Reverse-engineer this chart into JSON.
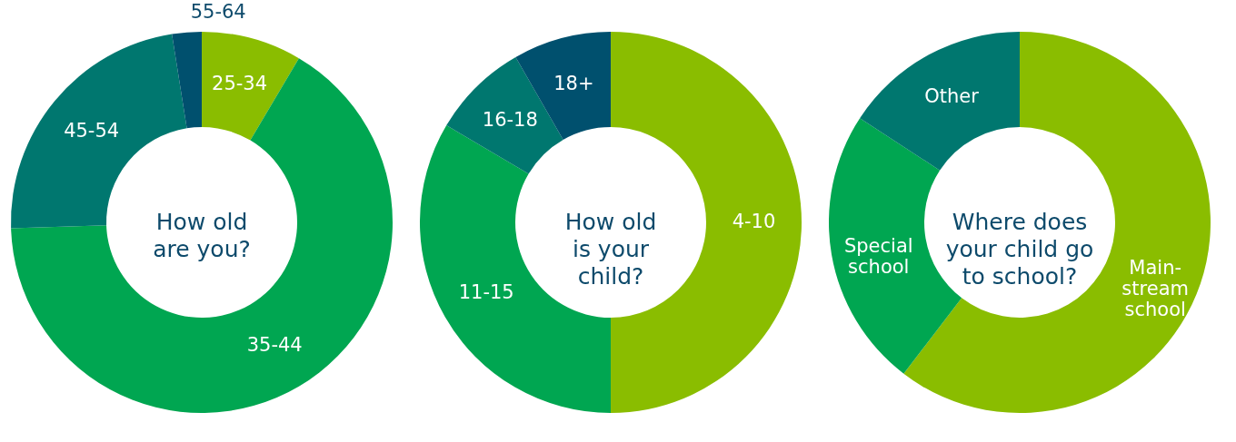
{
  "chart_data": [
    {
      "type": "donut",
      "title": "How old\nare you?",
      "categories": [
        "25-34",
        "35-44",
        "45-54",
        "55-64"
      ],
      "values": [
        8.5,
        66,
        23,
        2.5
      ],
      "colors": [
        "#8abd00",
        "#00a651",
        "#00776f",
        "#00506e"
      ],
      "legend": false
    },
    {
      "type": "donut",
      "title": "How old\nis your\nchild?",
      "categories": [
        "4-10",
        "11-15",
        "16-18",
        "18+"
      ],
      "values": [
        50,
        33.5,
        8.2,
        8.3
      ],
      "colors": [
        "#8abd00",
        "#00a651",
        "#00776f",
        "#00506e"
      ],
      "legend": false
    },
    {
      "type": "donut",
      "title": "Where does\nyour child go\nto school?",
      "categories": [
        "Main-\nstream\nschool",
        "Special\nschool",
        "Other"
      ],
      "values": [
        60.4,
        23.8,
        15.8
      ],
      "colors": [
        "#8abd00",
        "#00a651",
        "#00776f"
      ],
      "legend": false
    }
  ]
}
